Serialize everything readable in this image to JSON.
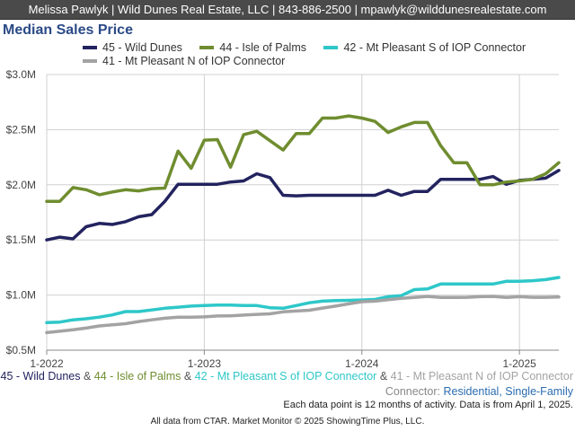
{
  "header": {
    "contact": "Melissa Pawlyk | Wild Dunes Real Estate, LLC | 843-886-2500 | mpawlyk@wilddunesrealestate.com"
  },
  "chart_data": {
    "type": "line",
    "title": "Median Sales Price",
    "xlabel": "",
    "ylabel": "",
    "ylim": [
      500000,
      3000000
    ],
    "yticks": [
      500000,
      1000000,
      1500000,
      2000000,
      2500000,
      3000000
    ],
    "ytick_labels": [
      "$0.5M",
      "$1.0M",
      "$1.5M",
      "$2.0M",
      "$2.5M",
      "$3.0M"
    ],
    "xlim": [
      "2022-01",
      "2025-04"
    ],
    "xticks": [
      "2022-01",
      "2023-01",
      "2024-01",
      "2025-01"
    ],
    "xtick_labels": [
      "1-2022",
      "1-2023",
      "1-2024",
      "1-2025"
    ],
    "x": [
      "2022-01",
      "2022-02",
      "2022-03",
      "2022-04",
      "2022-05",
      "2022-06",
      "2022-07",
      "2022-08",
      "2022-09",
      "2022-10",
      "2022-11",
      "2022-12",
      "2023-01",
      "2023-02",
      "2023-03",
      "2023-04",
      "2023-05",
      "2023-06",
      "2023-07",
      "2023-08",
      "2023-09",
      "2023-10",
      "2023-11",
      "2023-12",
      "2024-01",
      "2024-02",
      "2024-03",
      "2024-04",
      "2024-05",
      "2024-06",
      "2024-07",
      "2024-08",
      "2024-09",
      "2024-10",
      "2024-11",
      "2024-12",
      "2025-01",
      "2025-02",
      "2025-03",
      "2025-04"
    ],
    "grid": true,
    "legend_position": "top",
    "series": [
      {
        "name": "45 - Wild Dunes",
        "color": "#23235f",
        "values": [
          1500000,
          1525000,
          1510000,
          1620000,
          1650000,
          1640000,
          1665000,
          1710000,
          1730000,
          1850000,
          2005000,
          2005000,
          2005000,
          2005000,
          2025000,
          2035000,
          2100000,
          2065000,
          1905000,
          1900000,
          1905000,
          1905000,
          1905000,
          1905000,
          1905000,
          1905000,
          1950000,
          1905000,
          1940000,
          1940000,
          2050000,
          2050000,
          2050000,
          2050000,
          2075000,
          2005000,
          2040000,
          2050000,
          2060000,
          2130000
        ]
      },
      {
        "name": "44 - Isle of Palms",
        "color": "#6f8d2f",
        "values": [
          1850000,
          1850000,
          1975000,
          1955000,
          1910000,
          1935000,
          1955000,
          1945000,
          1965000,
          1970000,
          2305000,
          2150000,
          2405000,
          2410000,
          2160000,
          2455000,
          2485000,
          2400000,
          2315000,
          2465000,
          2465000,
          2605000,
          2605000,
          2625000,
          2605000,
          2575000,
          2475000,
          2525000,
          2565000,
          2565000,
          2355000,
          2200000,
          2200000,
          2000000,
          2000000,
          2025000,
          2035000,
          2050000,
          2100000,
          2200000
        ]
      },
      {
        "name": "42 - Mt Pleasant S of IOP Connector",
        "color": "#2ec7c9",
        "values": [
          750000,
          755000,
          775000,
          785000,
          800000,
          820000,
          850000,
          850000,
          865000,
          880000,
          890000,
          900000,
          905000,
          910000,
          910000,
          905000,
          905000,
          885000,
          880000,
          905000,
          930000,
          945000,
          950000,
          952000,
          955000,
          960000,
          985000,
          995000,
          1050000,
          1055000,
          1100000,
          1100000,
          1100000,
          1100000,
          1100000,
          1125000,
          1125000,
          1130000,
          1140000,
          1160000
        ]
      },
      {
        "name": "41 - Mt Pleasant N of IOP Connector",
        "color": "#a3a3a3",
        "values": [
          660000,
          672000,
          685000,
          700000,
          720000,
          730000,
          740000,
          760000,
          775000,
          790000,
          800000,
          800000,
          802000,
          810000,
          812000,
          818000,
          825000,
          830000,
          848000,
          855000,
          862000,
          882000,
          900000,
          920000,
          940000,
          945000,
          958000,
          970000,
          978000,
          988000,
          978000,
          978000,
          980000,
          985000,
          988000,
          978000,
          985000,
          980000,
          980000,
          982000
        ]
      }
    ]
  },
  "caption": {
    "series_names": [
      "45 - Wild Dunes",
      "44 - Isle of Palms",
      "42 - Mt Pleasant S of IOP Connector",
      "41 - Mt Pleasant N of IOP Connector"
    ],
    "separator": "&",
    "connector_label": "Connector:",
    "connector_value": "Residential, Single-Family",
    "note": "Each data point is 12 months of activity. Data is from April 1, 2025.",
    "footer": "All data from CTAR. Market Monitor © 2025 ShowingTime Plus, LLC."
  }
}
